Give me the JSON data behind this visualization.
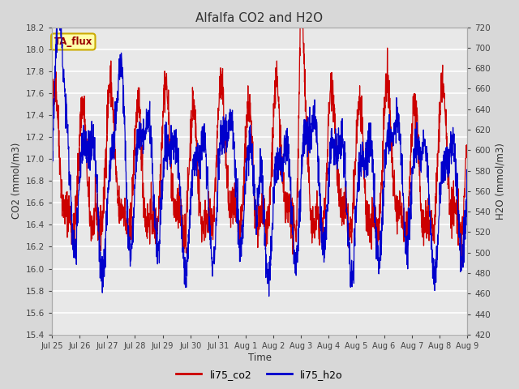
{
  "title": "Alfalfa CO2 and H2O",
  "xlabel": "Time",
  "ylabel_left": "CO2 (mmol/m3)",
  "ylabel_right": "H2O (mmol/m3)",
  "co2_ylim": [
    15.4,
    18.2
  ],
  "h2o_ylim": [
    420,
    720
  ],
  "co2_yticks": [
    15.4,
    15.6,
    15.8,
    16.0,
    16.2,
    16.4,
    16.6,
    16.8,
    17.0,
    17.2,
    17.4,
    17.6,
    17.8,
    18.0,
    18.2
  ],
  "h2o_yticks": [
    420,
    440,
    460,
    480,
    500,
    520,
    540,
    560,
    580,
    600,
    620,
    640,
    660,
    680,
    700,
    720
  ],
  "co2_color": "#cc0000",
  "h2o_color": "#0000cc",
  "legend_co2": "li75_co2",
  "legend_h2o": "li75_h2o",
  "annotation_text": "TA_flux",
  "annotation_bg": "#ffffaa",
  "annotation_border": "#ccaa00",
  "bg_color": "#d8d8d8",
  "plot_bg_color": "#e8e8e8",
  "grid_color": "#ffffff",
  "title_color": "#333333",
  "n_points": 2000,
  "xtick_labels": [
    "Jul 25",
    "Jul 26",
    "Jul 27",
    "Jul 28",
    "Jul 29",
    "Jul 30",
    "Jul 31",
    "Aug 1",
    "Aug 2",
    "Aug 3",
    "Aug 4",
    "Aug 5",
    "Aug 6",
    "Aug 7",
    "Aug 8",
    "Aug 9"
  ]
}
